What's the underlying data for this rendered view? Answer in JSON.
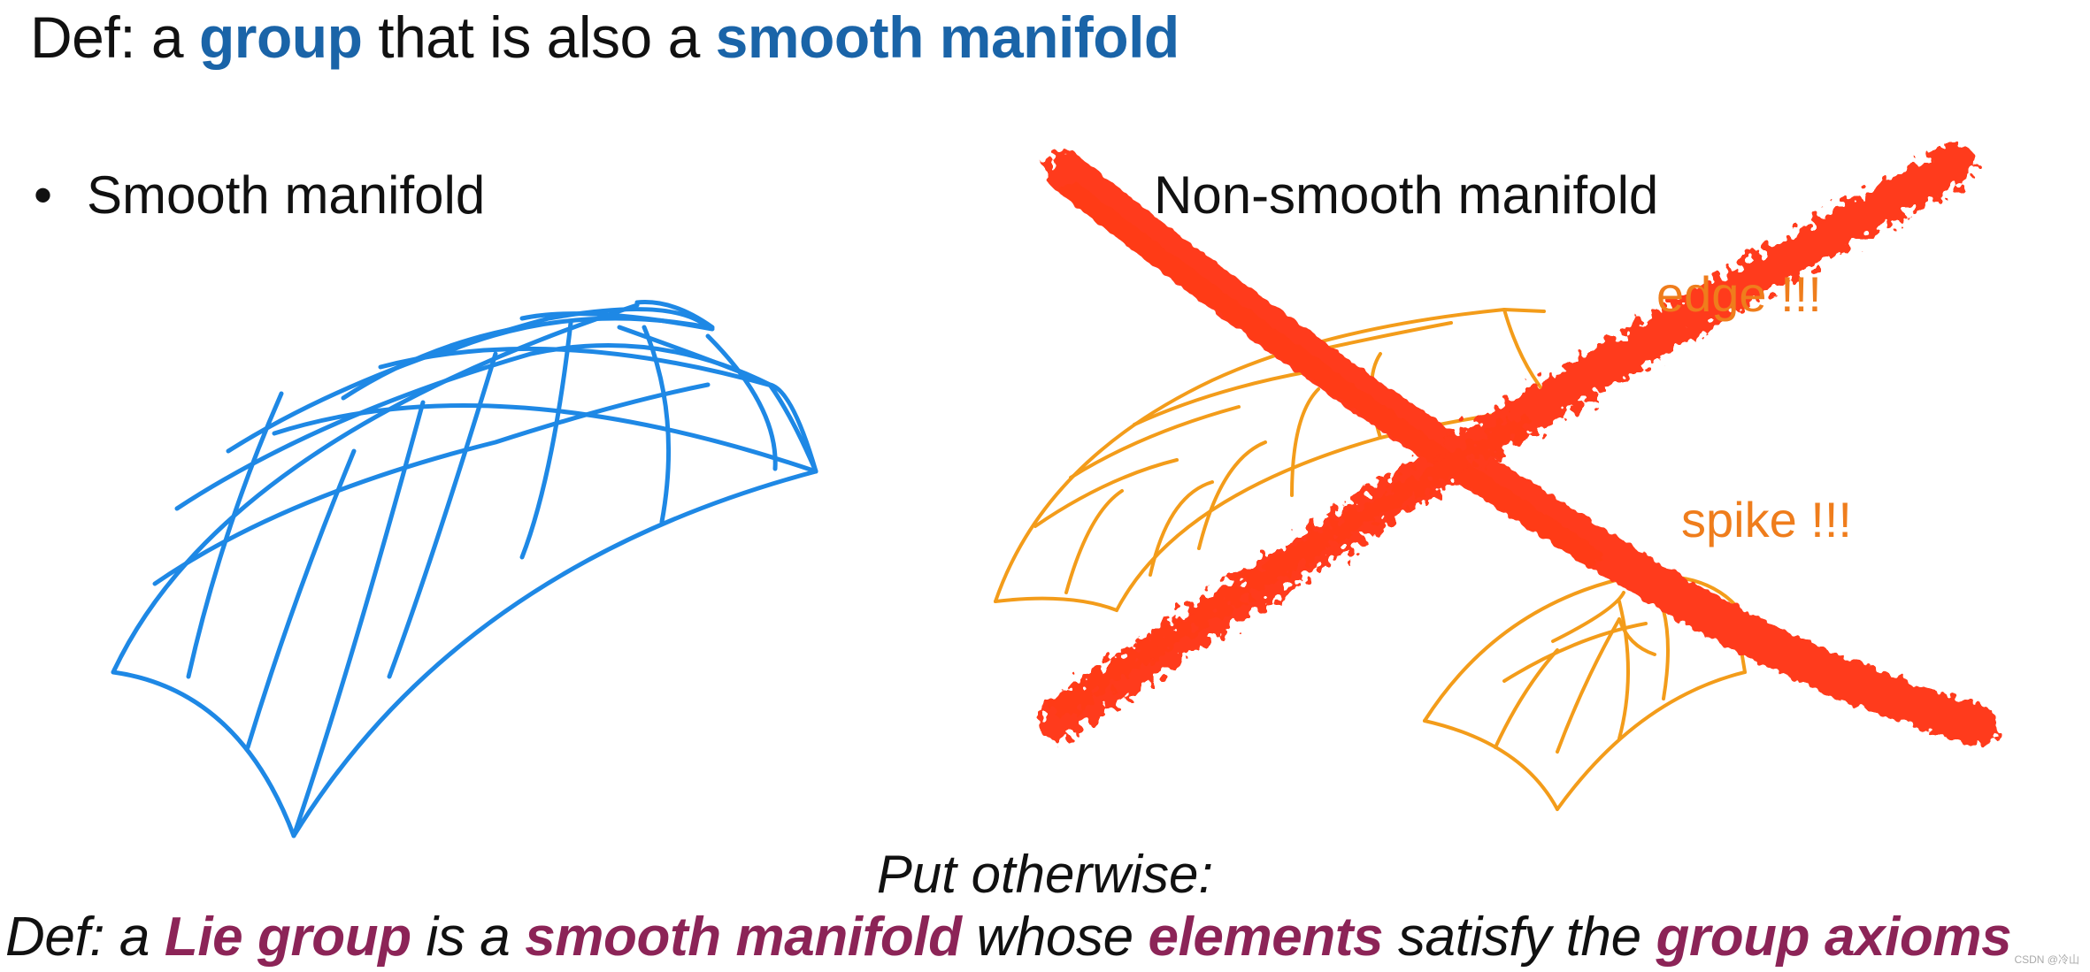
{
  "title": {
    "prefix": "Def: a ",
    "group": "group",
    "middle": " that is also a ",
    "smooth_manifold": "smooth manifold"
  },
  "left_panel": {
    "bullet": "•",
    "label": "Smooth manifold",
    "grid_color": "#1e88e5"
  },
  "right_panel": {
    "label": "Non-smooth manifold",
    "edge_label": "edge !!!",
    "spike_label": "spike !!!",
    "grid_color": "#f39c1a",
    "cross_color": "#ff3b1a"
  },
  "subtitle": "Put otherwise:",
  "bottom_def": {
    "p1": "Def: a ",
    "lie_group": "Lie group",
    "p2": " is a ",
    "smooth_manifold": "smooth manifold",
    "p3": " whose ",
    "elements": "elements",
    "p4": " satisfy the ",
    "group_axioms": "group axioms"
  },
  "watermark": "CSDN @冷山"
}
